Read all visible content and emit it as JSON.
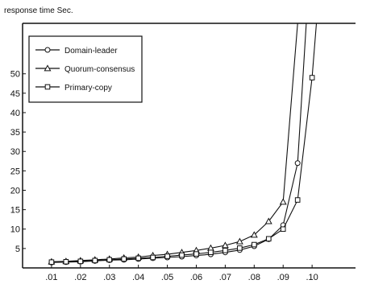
{
  "chart_data": {
    "type": "line",
    "title": "",
    "ylabel": "response time Sec.",
    "xlabel": "",
    "x": [
      0.01,
      0.02,
      0.03,
      0.04,
      0.05,
      0.06,
      0.07,
      0.08,
      0.09,
      0.095,
      0.1
    ],
    "x_tick_labels": [
      ".01",
      ".02",
      ".03",
      ".04",
      ".05",
      ".06",
      ".07",
      ".08",
      ".09",
      ".10"
    ],
    "x_ticks": [
      0.01,
      0.02,
      0.03,
      0.04,
      0.05,
      0.06,
      0.07,
      0.08,
      0.09,
      0.1
    ],
    "y_ticks": [
      5,
      10,
      15,
      20,
      25,
      30,
      35,
      40,
      45,
      50
    ],
    "xlim": [
      0.0,
      0.115
    ],
    "ylim": [
      0,
      63
    ],
    "grid": false,
    "legend_position": "top-left",
    "series": [
      {
        "name": "Domain-leader",
        "marker": "circle",
        "points": [
          [
            0.01,
            1.4
          ],
          [
            0.015,
            1.5
          ],
          [
            0.02,
            1.6
          ],
          [
            0.025,
            1.8
          ],
          [
            0.03,
            2.0
          ],
          [
            0.035,
            2.1
          ],
          [
            0.04,
            2.3
          ],
          [
            0.045,
            2.5
          ],
          [
            0.05,
            2.7
          ],
          [
            0.055,
            2.9
          ],
          [
            0.06,
            3.2
          ],
          [
            0.065,
            3.5
          ],
          [
            0.07,
            4.0
          ],
          [
            0.075,
            4.6
          ],
          [
            0.08,
            5.6
          ],
          [
            0.085,
            7.4
          ],
          [
            0.09,
            11.0
          ],
          [
            0.095,
            27.0
          ],
          [
            0.098,
            63
          ]
        ]
      },
      {
        "name": "Quorum-consensus",
        "marker": "triangle",
        "points": [
          [
            0.01,
            1.6
          ],
          [
            0.015,
            1.7
          ],
          [
            0.02,
            1.9
          ],
          [
            0.025,
            2.1
          ],
          [
            0.03,
            2.3
          ],
          [
            0.035,
            2.6
          ],
          [
            0.04,
            2.8
          ],
          [
            0.045,
            3.2
          ],
          [
            0.05,
            3.5
          ],
          [
            0.055,
            4.0
          ],
          [
            0.06,
            4.5
          ],
          [
            0.065,
            5.1
          ],
          [
            0.07,
            5.8
          ],
          [
            0.075,
            6.8
          ],
          [
            0.08,
            8.5
          ],
          [
            0.085,
            12.0
          ],
          [
            0.09,
            17.0
          ],
          [
            0.095,
            63
          ]
        ]
      },
      {
        "name": "Primary-copy",
        "marker": "square",
        "points": [
          [
            0.01,
            1.5
          ],
          [
            0.015,
            1.6
          ],
          [
            0.02,
            1.7
          ],
          [
            0.025,
            1.9
          ],
          [
            0.03,
            2.1
          ],
          [
            0.035,
            2.3
          ],
          [
            0.04,
            2.5
          ],
          [
            0.045,
            2.7
          ],
          [
            0.05,
            3.0
          ],
          [
            0.055,
            3.3
          ],
          [
            0.06,
            3.6
          ],
          [
            0.065,
            4.0
          ],
          [
            0.07,
            4.5
          ],
          [
            0.075,
            5.1
          ],
          [
            0.08,
            6.0
          ],
          [
            0.085,
            7.5
          ],
          [
            0.09,
            10.0
          ],
          [
            0.095,
            17.5
          ],
          [
            0.1,
            49.0
          ],
          [
            0.1015,
            63
          ]
        ]
      }
    ]
  }
}
